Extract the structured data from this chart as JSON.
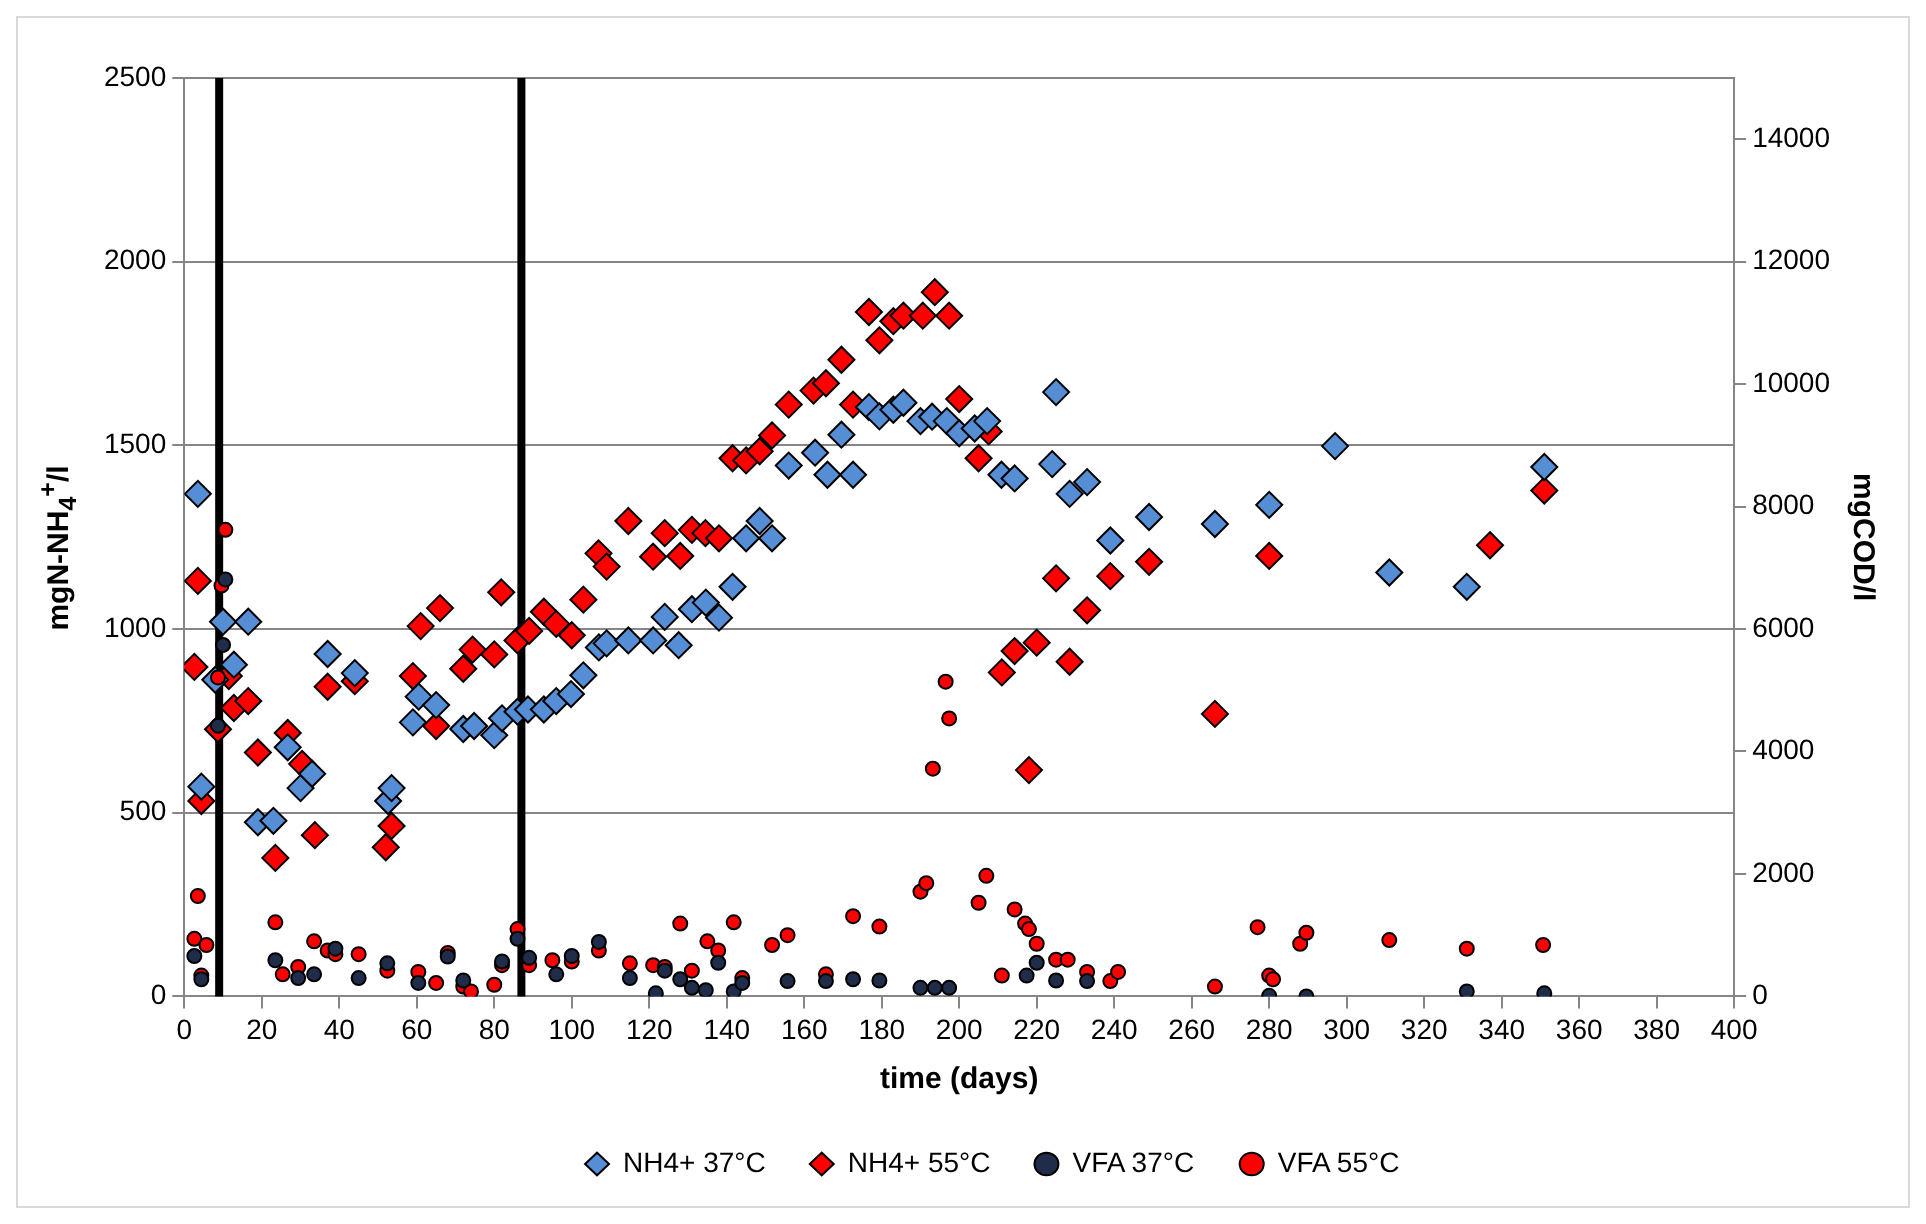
{
  "chart_data": {
    "type": "scatter",
    "xlabel": "time (days)",
    "ylabel": "mgN-NH$_{4}$$^{+}$/l",
    "y2label": "mgCOD/l",
    "xlim": [
      0,
      400
    ],
    "xticks": [
      0,
      20,
      40,
      60,
      80,
      100,
      120,
      140,
      160,
      180,
      200,
      220,
      240,
      260,
      280,
      300,
      320,
      340,
      360,
      380,
      400
    ],
    "ylim": [
      0,
      2500
    ],
    "yticks": [
      0,
      500,
      1000,
      1500,
      2000,
      2500
    ],
    "y2lim": [
      0,
      15000
    ],
    "y2ticks": [
      0,
      2000,
      4000,
      6000,
      8000,
      10000,
      12000,
      14000
    ],
    "grid": "y",
    "legend": "bottom",
    "ref_lines": [
      {
        "axis": "x",
        "value": 9,
        "color": "#000000"
      },
      {
        "axis": "x",
        "value": 87,
        "color": "#000000"
      }
    ],
    "series": [
      {
        "name": "NH4+ 37°C",
        "color": "#558ed5",
        "marker": "diamond",
        "x": [
          3.5,
          4.4,
          8,
          10,
          12.8,
          16.5,
          19,
          23,
          26.7,
          30,
          33,
          37,
          44,
          52.6,
          53.5,
          59,
          60.5,
          65,
          72,
          74.8,
          80,
          82,
          86,
          88.7,
          92.8,
          96,
          99.8,
          103,
          107,
          109,
          114.6,
          121,
          124,
          127.6,
          131,
          134.6,
          138,
          141.5,
          145,
          148.5,
          151.7,
          156,
          162.8,
          166,
          169.6,
          172.6,
          176.7,
          179.4,
          183,
          185.6,
          190,
          193,
          196.8,
          200,
          204,
          207.2,
          210.9,
          214.3,
          224,
          225,
          228.5,
          233,
          239,
          249,
          266,
          280,
          297,
          311,
          331,
          351
        ],
        "values": [
          1368,
          571,
          862,
          1020,
          903,
          1020,
          474,
          478,
          678,
          567,
          606,
          932,
          880,
          532,
          567,
          746,
          816,
          793,
          728,
          736,
          711,
          757,
          775,
          781,
          781,
          804,
          823,
          874,
          950,
          961,
          969,
          969,
          1033,
          956,
          1054,
          1072,
          1031,
          1115,
          1247,
          1294,
          1247,
          1445,
          1480,
          1420,
          1529,
          1420,
          1604,
          1579,
          1597,
          1616,
          1566,
          1578,
          1566,
          1533,
          1546,
          1566,
          1420,
          1410,
          1449,
          1645,
          1368,
          1400,
          1241,
          1305,
          1286,
          1338,
          1498,
          1154,
          1115,
          1441
        ]
      },
      {
        "name": "NH4+ 55°C",
        "color": "#ff0000",
        "marker": "diamond",
        "x": [
          2.6,
          3.5,
          4.4,
          8.7,
          11.5,
          12.8,
          16.5,
          19,
          23.5,
          26.7,
          30.4,
          33.7,
          37,
          44,
          52,
          53.5,
          59,
          61,
          65,
          66,
          72,
          74.4,
          80,
          81.8,
          86,
          89,
          92.8,
          96,
          100,
          103,
          106.9,
          109,
          114.6,
          121,
          124,
          128,
          131,
          134.5,
          138,
          141.5,
          145,
          148.5,
          151.7,
          156,
          162.4,
          165.6,
          169.6,
          172.6,
          176.7,
          179.4,
          183,
          185.6,
          190.6,
          193.7,
          197.4,
          200,
          205,
          207.6,
          211,
          214.3,
          218,
          220,
          225,
          228.5,
          233,
          239,
          249,
          266,
          280,
          337,
          351
        ],
        "values": [
          897,
          1131,
          532,
          727,
          872,
          785,
          804,
          664,
          377,
          717,
          633,
          439,
          843,
          858,
          406,
          464,
          872,
          1008,
          736,
          1057,
          892,
          944,
          931,
          1100,
          969,
          995,
          1047,
          1014,
          983,
          1080,
          1206,
          1170,
          1294,
          1197,
          1261,
          1199,
          1270,
          1261,
          1247,
          1465,
          1459,
          1484,
          1527,
          1611,
          1649,
          1669,
          1733,
          1611,
          1863,
          1786,
          1838,
          1853,
          1853,
          1917,
          1853,
          1626,
          1465,
          1538,
          882,
          940,
          616,
          963,
          1138,
          911,
          1051,
          1144,
          1183,
          769,
          1199,
          1228,
          1377
        ]
      },
      {
        "name": "VFA 37°C",
        "color": "#1f2d4a",
        "marker": "circle",
        "axis": "y2",
        "x": [
          2.6,
          4.4,
          8.7,
          10,
          10.6,
          23.5,
          29.4,
          33.5,
          39,
          45,
          52.4,
          60.4,
          68,
          72,
          82,
          86,
          89,
          96,
          100,
          107,
          115,
          121.7,
          124,
          128,
          131,
          134.6,
          137.8,
          141.8,
          144,
          155.7,
          165.6,
          172.6,
          179.4,
          190,
          193.7,
          197.4,
          217.4,
          220,
          225,
          233,
          280,
          289.6,
          331,
          351
        ],
        "values": [
          660,
          280,
          4420,
          5740,
          6810,
          590,
          300,
          360,
          780,
          300,
          540,
          220,
          650,
          260,
          570,
          940,
          630,
          360,
          660,
          890,
          300,
          50,
          420,
          280,
          140,
          100,
          550,
          80,
          220,
          250,
          250,
          280,
          260,
          140,
          140,
          140,
          340,
          550,
          260,
          250,
          10,
          0,
          80,
          50
        ]
      },
      {
        "name": "VFA 55°C",
        "color": "#ff0000",
        "marker": "circle",
        "axis": "y2",
        "x": [
          2.6,
          3.5,
          4.4,
          5.7,
          8.7,
          9.6,
          10.6,
          23.5,
          25.4,
          29.4,
          33.5,
          37,
          39,
          45,
          52.4,
          60.4,
          65,
          68,
          72,
          74,
          80,
          82,
          86,
          89,
          95,
          100,
          107,
          115,
          121,
          124,
          128,
          131,
          135,
          137.8,
          141.8,
          144,
          151.7,
          155.7,
          165.6,
          172.6,
          179.4,
          190,
          191.5,
          193.2,
          196.5,
          197.4,
          205,
          207,
          211,
          214.3,
          217,
          218,
          220,
          225,
          228,
          233,
          239,
          241,
          266,
          277,
          280,
          281,
          288,
          289.6,
          311,
          331,
          350.7
        ],
        "values": [
          940,
          1640,
          340,
          840,
          5210,
          6710,
          7620,
          1210,
          360,
          480,
          900,
          750,
          690,
          690,
          420,
          400,
          220,
          710,
          160,
          80,
          190,
          510,
          1100,
          510,
          590,
          570,
          750,
          540,
          510,
          480,
          1190,
          420,
          900,
          750,
          1210,
          300,
          840,
          1000,
          360,
          1310,
          1140,
          1710,
          1850,
          3720,
          5140,
          4540,
          1530,
          1970,
          340,
          1420,
          1190,
          1100,
          860,
          600,
          600,
          400,
          250,
          400,
          160,
          1130,
          340,
          280,
          860,
          1040,
          920,
          780,
          840
        ]
      }
    ]
  }
}
